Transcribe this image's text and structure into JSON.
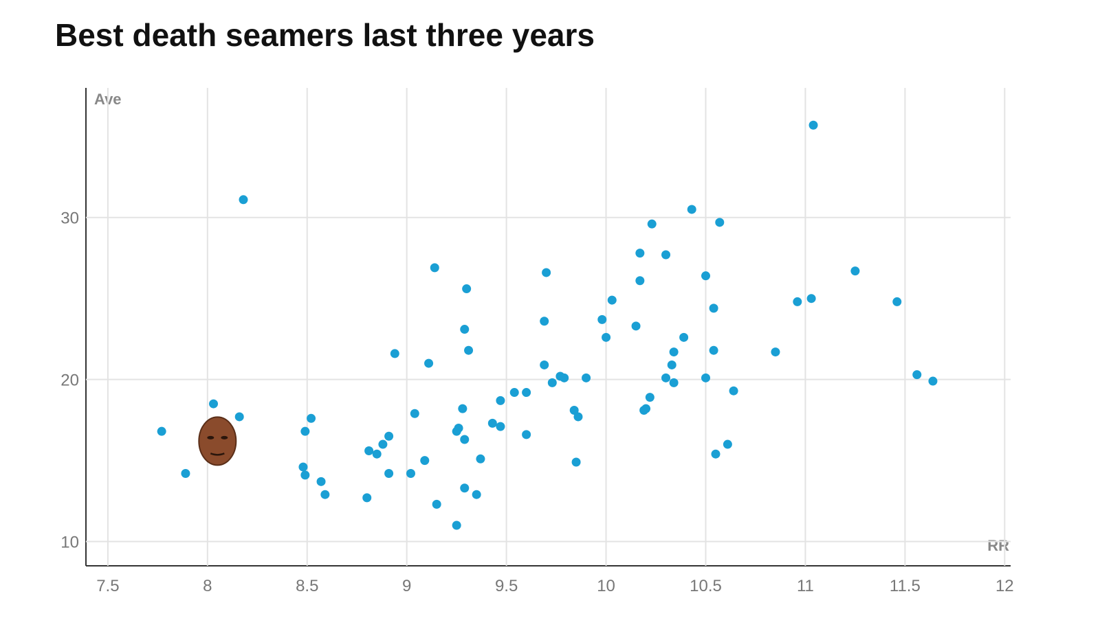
{
  "chart_data": {
    "type": "scatter",
    "title": "Best death seamers last three years",
    "x_label": "RR",
    "y_label": "Ave",
    "xlim": [
      7.39,
      12.03
    ],
    "ylim": [
      8.5,
      38
    ],
    "xticks": [
      7.5,
      8,
      8.5,
      9,
      9.5,
      10,
      10.5,
      11,
      11.5,
      12
    ],
    "yticks": [
      10,
      20,
      30
    ],
    "grid": true,
    "color": "#1a9fd4",
    "x": [
      7.77,
      7.89,
      8.03,
      8.16,
      8.18,
      8.49,
      8.48,
      8.49,
      8.52,
      8.57,
      8.59,
      8.8,
      8.81,
      8.85,
      8.88,
      8.91,
      8.91,
      8.94,
      9.02,
      9.04,
      9.09,
      9.11,
      9.14,
      9.15,
      9.25,
      9.25,
      9.26,
      9.28,
      9.29,
      9.29,
      9.29,
      9.3,
      9.31,
      9.35,
      9.37,
      9.43,
      9.47,
      9.47,
      9.54,
      9.6,
      9.6,
      9.69,
      9.69,
      9.7,
      9.73,
      9.77,
      9.79,
      9.84,
      9.85,
      9.86,
      9.9,
      9.98,
      10.0,
      10.03,
      10.15,
      10.17,
      10.17,
      10.19,
      10.2,
      10.22,
      10.23,
      10.3,
      10.3,
      10.33,
      10.34,
      10.34,
      10.39,
      10.43,
      10.5,
      10.5,
      10.54,
      10.54,
      10.55,
      10.57,
      10.61,
      10.64,
      10.85,
      10.96,
      11.03,
      11.04,
      11.25,
      11.46,
      11.56,
      11.64
    ],
    "y": [
      16.8,
      14.2,
      18.5,
      17.7,
      31.1,
      16.8,
      14.6,
      14.1,
      17.6,
      13.7,
      12.9,
      12.7,
      15.6,
      15.4,
      16.0,
      16.5,
      14.2,
      21.6,
      14.2,
      17.9,
      15.0,
      21.0,
      26.9,
      12.3,
      11.0,
      16.8,
      17.0,
      18.2,
      23.1,
      16.3,
      13.3,
      25.6,
      21.8,
      12.9,
      15.1,
      17.3,
      17.1,
      18.7,
      19.2,
      19.2,
      16.6,
      23.6,
      20.9,
      26.6,
      19.8,
      20.2,
      20.1,
      18.1,
      14.9,
      17.7,
      20.1,
      23.7,
      22.6,
      24.9,
      23.3,
      27.8,
      26.1,
      18.1,
      18.2,
      18.9,
      29.6,
      27.7,
      20.1,
      20.9,
      21.7,
      19.8,
      22.6,
      30.5,
      26.4,
      20.1,
      24.4,
      21.8,
      15.4,
      29.7,
      16.0,
      19.3,
      21.7,
      24.8,
      25.0,
      35.7,
      26.7,
      24.8,
      20.3,
      19.9
    ],
    "highlight": {
      "x": 8.05,
      "y": 16.2
    }
  }
}
